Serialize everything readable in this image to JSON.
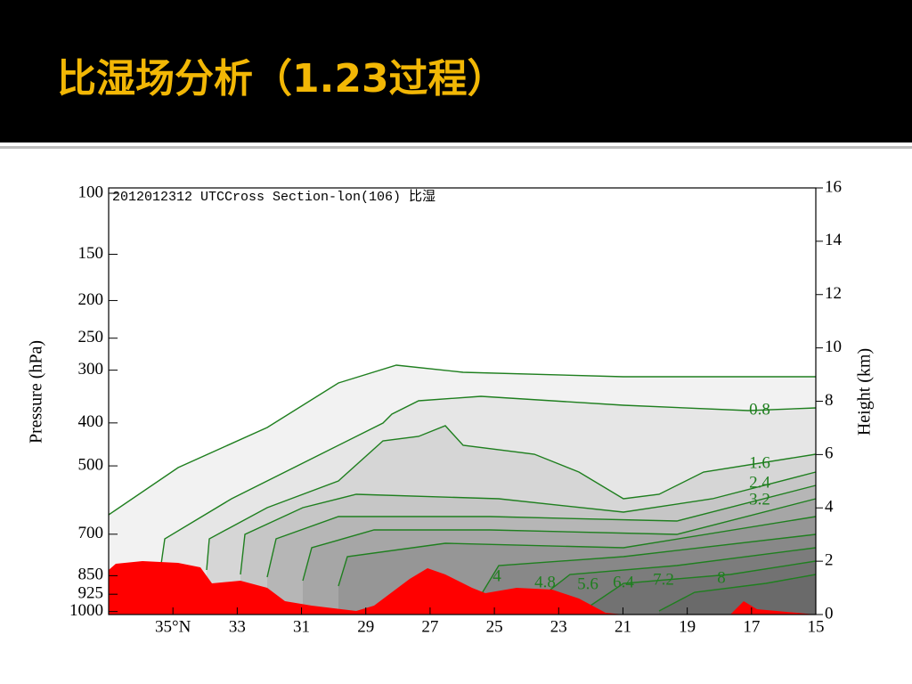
{
  "slide": {
    "title": "比湿场分析（1.23过程）"
  },
  "chart_data": {
    "type": "contour",
    "title": "2012012312 UTCCross Section-lon(106) 比湿",
    "xlim": [
      37,
      15
    ],
    "xticks": [
      {
        "value": 35,
        "label": "35°N"
      },
      33,
      31,
      29,
      27,
      25,
      23,
      21,
      19,
      17,
      15
    ],
    "ylabel": "Pressure (hPa)",
    "ylim": [
      1000,
      100
    ],
    "yticks": [
      100,
      150,
      200,
      250,
      300,
      400,
      500,
      700,
      850,
      925,
      1000
    ],
    "y_scale": "standard-atmosphere",
    "y2label": "Height (km)",
    "y2lim": [
      0,
      16
    ],
    "y2ticks": [
      0,
      2,
      4,
      6,
      8,
      10,
      12,
      14,
      16
    ],
    "levels": [
      0.8,
      1.6,
      2.4,
      3.2,
      4,
      4.8,
      5.6,
      6.4,
      7.2,
      8
    ],
    "line_color": "#1f7f1f",
    "terrain_color": "#ff0000"
  }
}
